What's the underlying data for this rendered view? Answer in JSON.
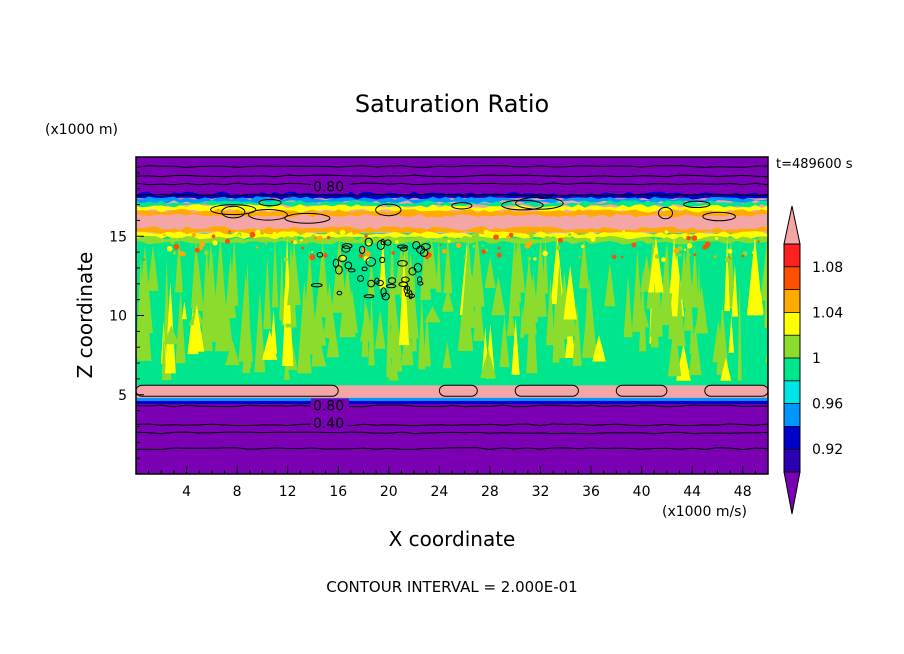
{
  "chart_data": {
    "type": "heatmap",
    "title": "Saturation Ratio",
    "xlabel": "X coordinate",
    "ylabel": "Z coordinate",
    "x_unit": "(x1000 m/s)",
    "y_unit": "(x1000 m)",
    "time_label": "t=489600 s",
    "footer": "CONTOUR INTERVAL = 2.000E-01",
    "xlim": [
      0,
      50
    ],
    "ylim": [
      0,
      20
    ],
    "x_ticks": [
      4,
      8,
      12,
      16,
      20,
      24,
      28,
      32,
      36,
      40,
      44,
      48
    ],
    "y_ticks": [
      5,
      10,
      15
    ],
    "contour_labels": [
      {
        "text": "0.80",
        "x": 14,
        "y": 18.0
      },
      {
        "text": "0.80",
        "x": 14,
        "y": 4.2
      },
      {
        "text": "0.40",
        "x": 14,
        "y": 3.1
      }
    ],
    "colorbar": {
      "levels": [
        0.9,
        0.92,
        0.94,
        0.96,
        0.98,
        1.0,
        1.02,
        1.04,
        1.06,
        1.08,
        1.1
      ],
      "tick_labels": [
        "1.08",
        "1.04",
        "1",
        "0.96",
        "0.92"
      ],
      "colors": [
        "#7b00b4",
        "#2d00b4",
        "#0000cd",
        "#0096ff",
        "#00e6e6",
        "#00e68c",
        "#8cdc2d",
        "#ffff00",
        "#ffaa00",
        "#ff5000",
        "#ff2020",
        "#f4a6a6"
      ]
    },
    "layers": [
      {
        "z_range": [
          0,
          4.8
        ],
        "value": "< 0.92",
        "color": "#7b00b4"
      },
      {
        "z_range": [
          4.8,
          5.6
        ],
        "value": "> 1.10",
        "color": "#f4a6a6"
      },
      {
        "z_range": [
          5.6,
          15.2
        ],
        "value": "1.00-1.02",
        "color": "#00e68c"
      },
      {
        "z_range": [
          15.2,
          17.4
        ],
        "value": "> 1.10",
        "color": "#f4a6a6"
      },
      {
        "z_range": [
          17.4,
          20
        ],
        "value": "< 0.92",
        "color": "#7b00b4"
      }
    ]
  }
}
